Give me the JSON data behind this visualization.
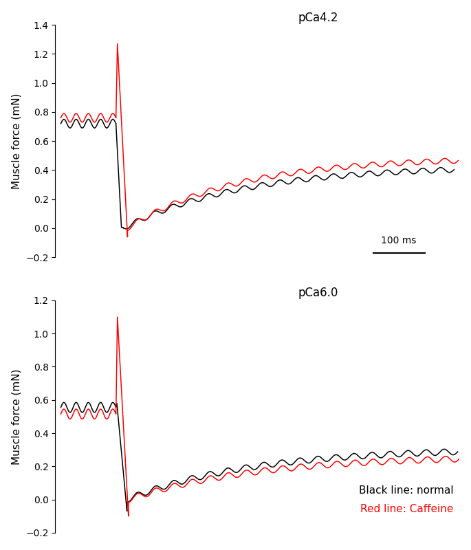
{
  "title1": "pCa4.2",
  "title2": "pCa6.0",
  "ylabel": "Muscle force (mN)",
  "ylim1": [
    -0.2,
    1.4
  ],
  "ylim2": [
    -0.2,
    1.2
  ],
  "yticks1": [
    -0.2,
    0,
    0.2,
    0.4,
    0.6,
    0.8,
    1.0,
    1.2,
    1.4
  ],
  "yticks2": [
    -0.2,
    0,
    0.2,
    0.4,
    0.6,
    0.8,
    1.0,
    1.2
  ],
  "legend_black": "Black line: normal",
  "legend_red": "Red line: Caffeine",
  "scalebar_label": "100 ms",
  "pre_noise_amp": 0.03,
  "pre_noise_freq_cycles": 4.5,
  "rec_noise_amp": 0.018,
  "rec_noise_freq_cycles": 22
}
